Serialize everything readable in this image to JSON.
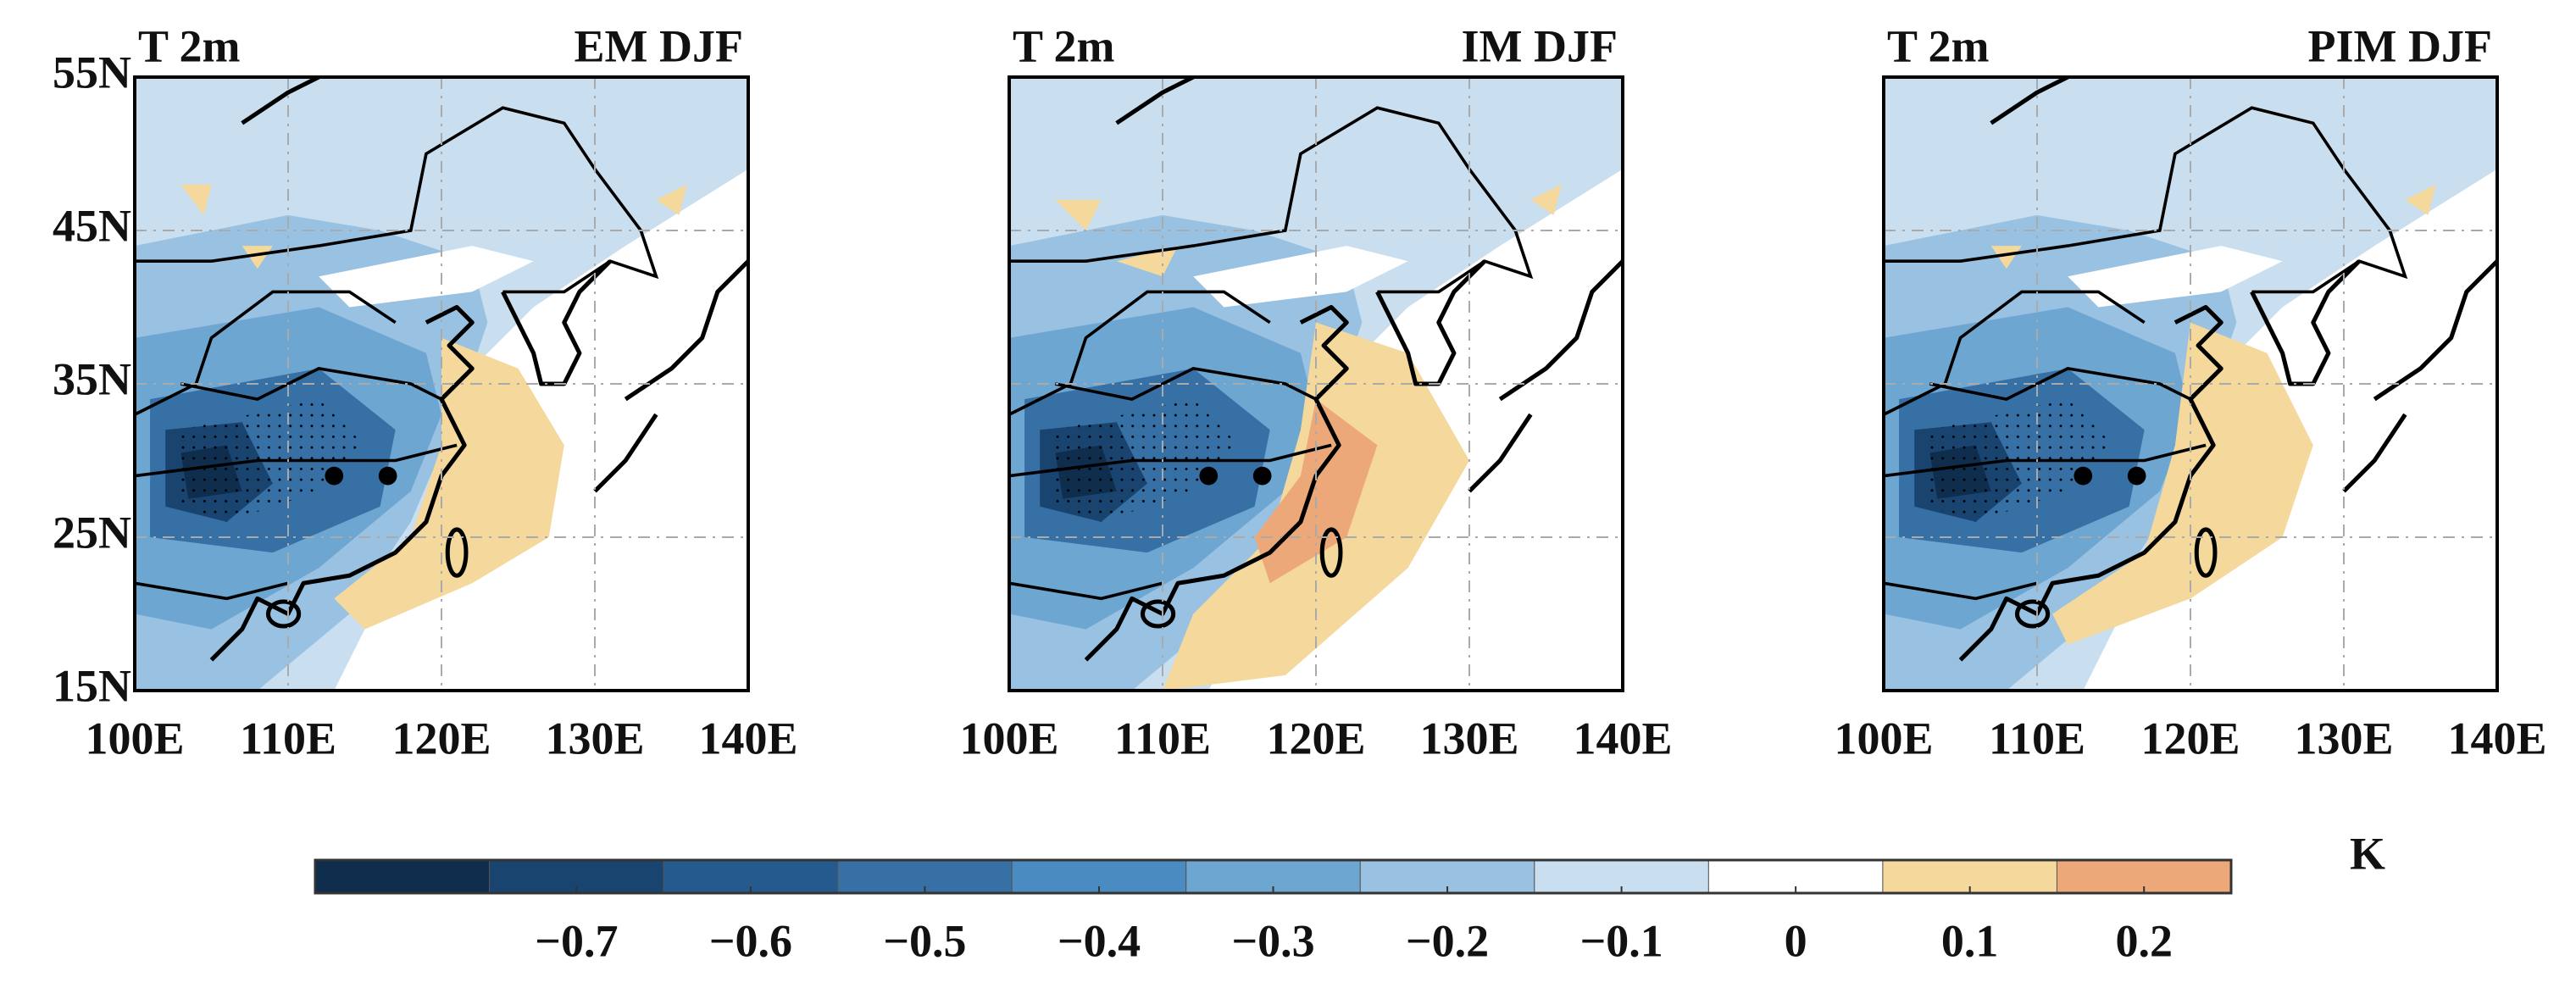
{
  "panels": [
    {
      "variable": "T 2m",
      "label": "EM DJF"
    },
    {
      "variable": "T 2m",
      "label": "IM DJF"
    },
    {
      "variable": "T 2m",
      "label": "PIM DJF"
    }
  ],
  "map": {
    "lon_range": [
      100,
      140
    ],
    "lat_range": [
      15,
      55
    ],
    "lat_ticks": [
      {
        "value": 55,
        "label": "55N"
      },
      {
        "value": 45,
        "label": "45N"
      },
      {
        "value": 35,
        "label": "35N"
      },
      {
        "value": 25,
        "label": "25N"
      },
      {
        "value": 15,
        "label": "15N"
      }
    ],
    "lon_ticks": [
      {
        "value": 100,
        "label": "100E"
      },
      {
        "value": 110,
        "label": "110E"
      },
      {
        "value": 120,
        "label": "120E"
      },
      {
        "value": 130,
        "label": "130E"
      },
      {
        "value": 140,
        "label": "140E"
      }
    ]
  },
  "colorbar": {
    "unit": "K",
    "levels": [
      -0.85,
      -0.75,
      -0.65,
      -0.55,
      -0.45,
      -0.35,
      -0.25,
      -0.15,
      -0.05,
      0.05,
      0.15,
      0.25
    ],
    "colors": [
      "#0f2d4d",
      "#1a4470",
      "#255a8e",
      "#3670a5",
      "#4a8cc2",
      "#6ea6d2",
      "#98c1e2",
      "#c9dff0",
      "#ffffff",
      "#f4d89c",
      "#eda879"
    ],
    "ticks": [
      {
        "value": -0.7,
        "label": "−0.7"
      },
      {
        "value": -0.6,
        "label": "−0.6"
      },
      {
        "value": -0.5,
        "label": "−0.5"
      },
      {
        "value": -0.4,
        "label": "−0.4"
      },
      {
        "value": -0.3,
        "label": "−0.3"
      },
      {
        "value": -0.2,
        "label": "−0.2"
      },
      {
        "value": -0.1,
        "label": "−0.1"
      },
      0,
      0.1,
      0.2
    ]
  }
}
